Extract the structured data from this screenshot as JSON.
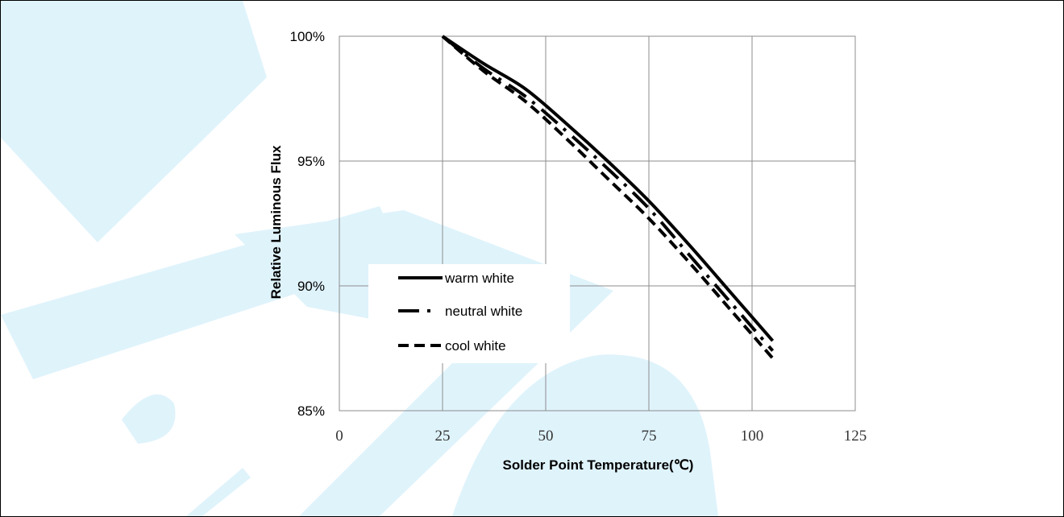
{
  "colors": {
    "watermark": "#dff3fb",
    "grid": "#8c8c8c",
    "series": "#000000"
  },
  "chart_data": {
    "type": "line",
    "xlabel": "Solder Point Temperature(℃)",
    "ylabel": "Relative Luminous Flux",
    "xlim": [
      0,
      125
    ],
    "ylim": [
      85,
      100
    ],
    "x_ticks": [
      "0",
      "25",
      "50",
      "75",
      "100",
      "125"
    ],
    "y_ticks": [
      "85%",
      "90%",
      "95%",
      "100%"
    ],
    "grid": true,
    "legend_position": "center-left",
    "series": [
      {
        "name": "warm white",
        "style": "solid",
        "points": [
          [
            25,
            100
          ],
          [
            35,
            98.9
          ],
          [
            45,
            97.9
          ],
          [
            55,
            96.5
          ],
          [
            65,
            95.0
          ],
          [
            75,
            93.4
          ],
          [
            85,
            91.6
          ],
          [
            95,
            89.7
          ],
          [
            105,
            87.8
          ]
        ]
      },
      {
        "name": "neutral white",
        "style": "dash-dot",
        "points": [
          [
            25,
            100
          ],
          [
            35,
            98.7
          ],
          [
            45,
            97.6
          ],
          [
            55,
            96.2
          ],
          [
            65,
            94.7
          ],
          [
            75,
            93.1
          ],
          [
            85,
            91.2
          ],
          [
            95,
            89.3
          ],
          [
            105,
            87.4
          ]
        ]
      },
      {
        "name": "cool white",
        "style": "dashed",
        "points": [
          [
            25,
            100
          ],
          [
            35,
            98.6
          ],
          [
            45,
            97.4
          ],
          [
            55,
            95.9
          ],
          [
            65,
            94.3
          ],
          [
            75,
            92.7
          ],
          [
            85,
            90.9
          ],
          [
            95,
            89.0
          ],
          [
            105,
            87.1
          ]
        ]
      }
    ]
  }
}
